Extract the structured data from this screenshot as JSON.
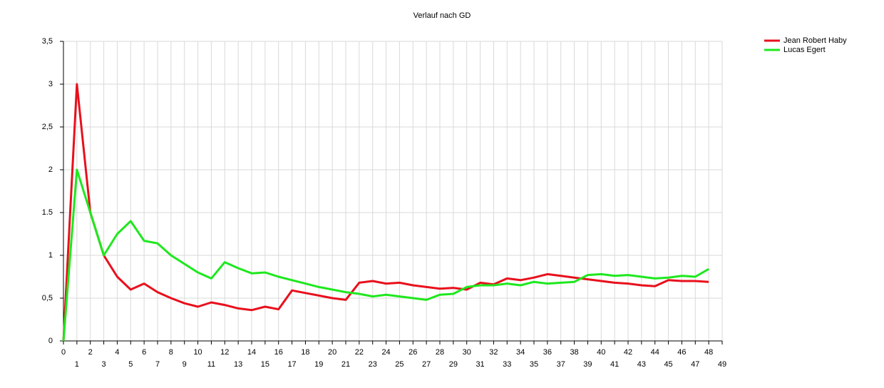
{
  "chart_data": {
    "type": "line",
    "title": "Verlauf nach GD",
    "x": [
      0,
      1,
      2,
      3,
      4,
      5,
      6,
      7,
      8,
      9,
      10,
      11,
      12,
      13,
      14,
      15,
      16,
      17,
      18,
      19,
      20,
      21,
      22,
      23,
      24,
      25,
      26,
      27,
      28,
      29,
      30,
      31,
      32,
      33,
      34,
      35,
      36,
      37,
      38,
      39,
      40,
      41,
      42,
      43,
      44,
      45,
      46,
      47,
      48
    ],
    "series": [
      {
        "name": "Jean Robert Haby",
        "color": "#e8101c",
        "values": [
          0,
          3.0,
          1.5,
          1.0,
          0.75,
          0.6,
          0.67,
          0.57,
          0.5,
          0.44,
          0.4,
          0.45,
          0.42,
          0.38,
          0.36,
          0.4,
          0.37,
          0.59,
          0.56,
          0.53,
          0.5,
          0.48,
          0.68,
          0.7,
          0.67,
          0.68,
          0.65,
          0.63,
          0.61,
          0.62,
          0.6,
          0.68,
          0.66,
          0.73,
          0.71,
          0.74,
          0.78,
          0.76,
          0.74,
          0.72,
          0.7,
          0.68,
          0.67,
          0.65,
          0.64,
          0.71,
          0.7,
          0.7,
          0.69
        ]
      },
      {
        "name": "Lucas Egert",
        "color": "#1ee81e",
        "values": [
          0,
          2.0,
          1.5,
          1.0,
          1.25,
          1.4,
          1.17,
          1.14,
          1.0,
          0.9,
          0.8,
          0.73,
          0.92,
          0.85,
          0.79,
          0.8,
          0.75,
          0.71,
          0.67,
          0.63,
          0.6,
          0.57,
          0.55,
          0.52,
          0.54,
          0.52,
          0.5,
          0.48,
          0.54,
          0.55,
          0.63,
          0.65,
          0.65,
          0.67,
          0.65,
          0.69,
          0.67,
          0.68,
          0.69,
          0.77,
          0.78,
          0.76,
          0.77,
          0.75,
          0.73,
          0.74,
          0.76,
          0.75,
          0.84
        ]
      }
    ],
    "xlim": [
      0,
      49
    ],
    "xticks": [
      0,
      1,
      2,
      3,
      4,
      5,
      6,
      7,
      8,
      9,
      10,
      11,
      12,
      13,
      14,
      15,
      16,
      17,
      18,
      19,
      20,
      21,
      22,
      23,
      24,
      25,
      26,
      27,
      28,
      29,
      30,
      31,
      32,
      33,
      34,
      35,
      36,
      37,
      38,
      39,
      40,
      41,
      42,
      43,
      44,
      45,
      46,
      47,
      48,
      49
    ],
    "ylim": [
      0,
      3.5
    ],
    "yticks": [
      0,
      {
        "value": 0.5,
        "label": "0,5"
      },
      1,
      {
        "value": 1.5,
        "label": "1.5"
      },
      2,
      {
        "value": 2.5,
        "label": "2,5"
      },
      3,
      {
        "value": 3.5,
        "label": "3,5"
      }
    ],
    "grid": true,
    "legend": "top-right"
  }
}
